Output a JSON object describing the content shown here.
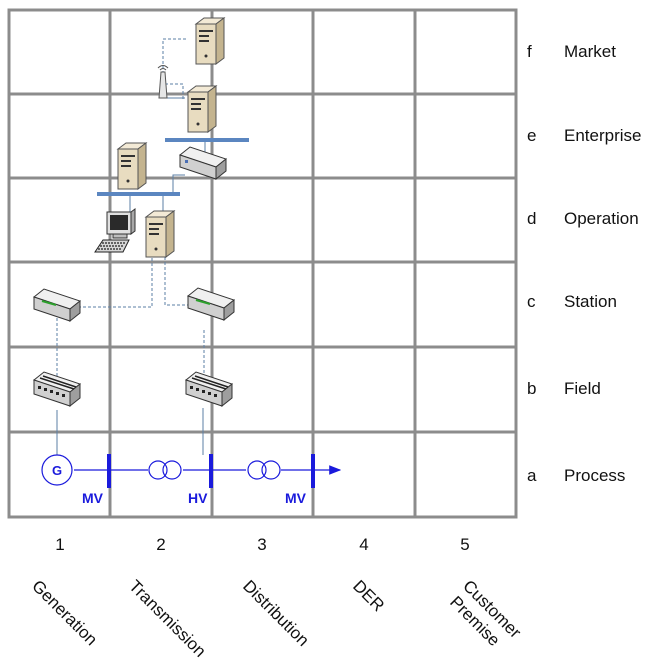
{
  "zones": [
    {
      "letter": "f",
      "name": "Market"
    },
    {
      "letter": "e",
      "name": "Enterprise"
    },
    {
      "letter": "d",
      "name": "Operation"
    },
    {
      "letter": "c",
      "name": "Station"
    },
    {
      "letter": "b",
      "name": "Field"
    },
    {
      "letter": "a",
      "name": "Process"
    }
  ],
  "domains": [
    {
      "number": "1",
      "name": "Generation"
    },
    {
      "number": "2",
      "name": "Transmission"
    },
    {
      "number": "3",
      "name": "Distribution"
    },
    {
      "number": "4",
      "name": "DER"
    },
    {
      "number": "5",
      "name": "Customer Premise",
      "name_lines": [
        "Customer",
        "Premise"
      ]
    }
  ],
  "process": {
    "generator_label": "G",
    "voltage_labels": [
      "MV",
      "HV",
      "MV"
    ]
  },
  "colors": {
    "grid": "#8c8c8c",
    "power_line": "#1a1adc",
    "network_bus": "#5b86c0",
    "link": "#5b7fa6",
    "server": "#e8dcc0",
    "device": "#d9d9d9"
  },
  "icons": [
    "server-icon",
    "antenna-icon",
    "workstation-icon",
    "router-icon",
    "switch-icon",
    "generator-icon",
    "transformer-icon"
  ]
}
